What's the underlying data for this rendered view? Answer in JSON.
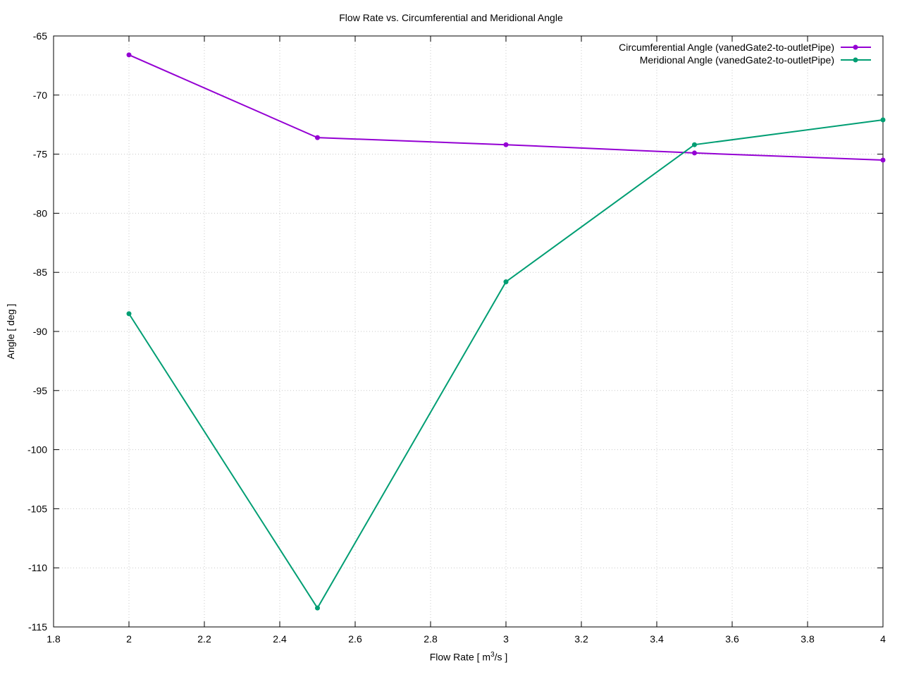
{
  "chart_data": {
    "type": "line",
    "title": "Flow Rate vs. Circumferential and Meridional Angle",
    "xlabel_prefix": "Flow Rate [ m",
    "xlabel_sup": "3",
    "xlabel_suffix": "/s ]",
    "ylabel": "Angle [ deg ]",
    "xlim": [
      1.8,
      4
    ],
    "ylim": [
      -115,
      -65
    ],
    "x_ticks": [
      1.8,
      2,
      2.2,
      2.4,
      2.6,
      2.8,
      3,
      3.2,
      3.4,
      3.6,
      3.8,
      4
    ],
    "x_tick_labels": [
      "1.8",
      "2",
      "2.2",
      "2.4",
      "2.6",
      "2.8",
      "3",
      "3.2",
      "3.4",
      "3.6",
      "3.8",
      "4"
    ],
    "y_ticks": [
      -65,
      -70,
      -75,
      -80,
      -85,
      -90,
      -95,
      -100,
      -105,
      -110,
      -115
    ],
    "y_tick_labels": [
      "-65",
      "-70",
      "-75",
      "-80",
      "-85",
      "-90",
      "-95",
      "-100",
      "-105",
      "-110",
      "-115"
    ],
    "grid": true,
    "legend_position": "top-right",
    "x": [
      2,
      2.5,
      3,
      3.5,
      4
    ],
    "series": [
      {
        "name": "Circumferential Angle (vanedGate2-to-outletPipe)",
        "color": "#9400d3",
        "values": [
          -66.6,
          -73.6,
          -74.2,
          -74.9,
          -75.5
        ]
      },
      {
        "name": "Meridional Angle (vanedGate2-to-outletPipe)",
        "color": "#009e73",
        "values": [
          -88.5,
          -113.4,
          -85.8,
          -74.2,
          -72.1
        ]
      }
    ]
  }
}
